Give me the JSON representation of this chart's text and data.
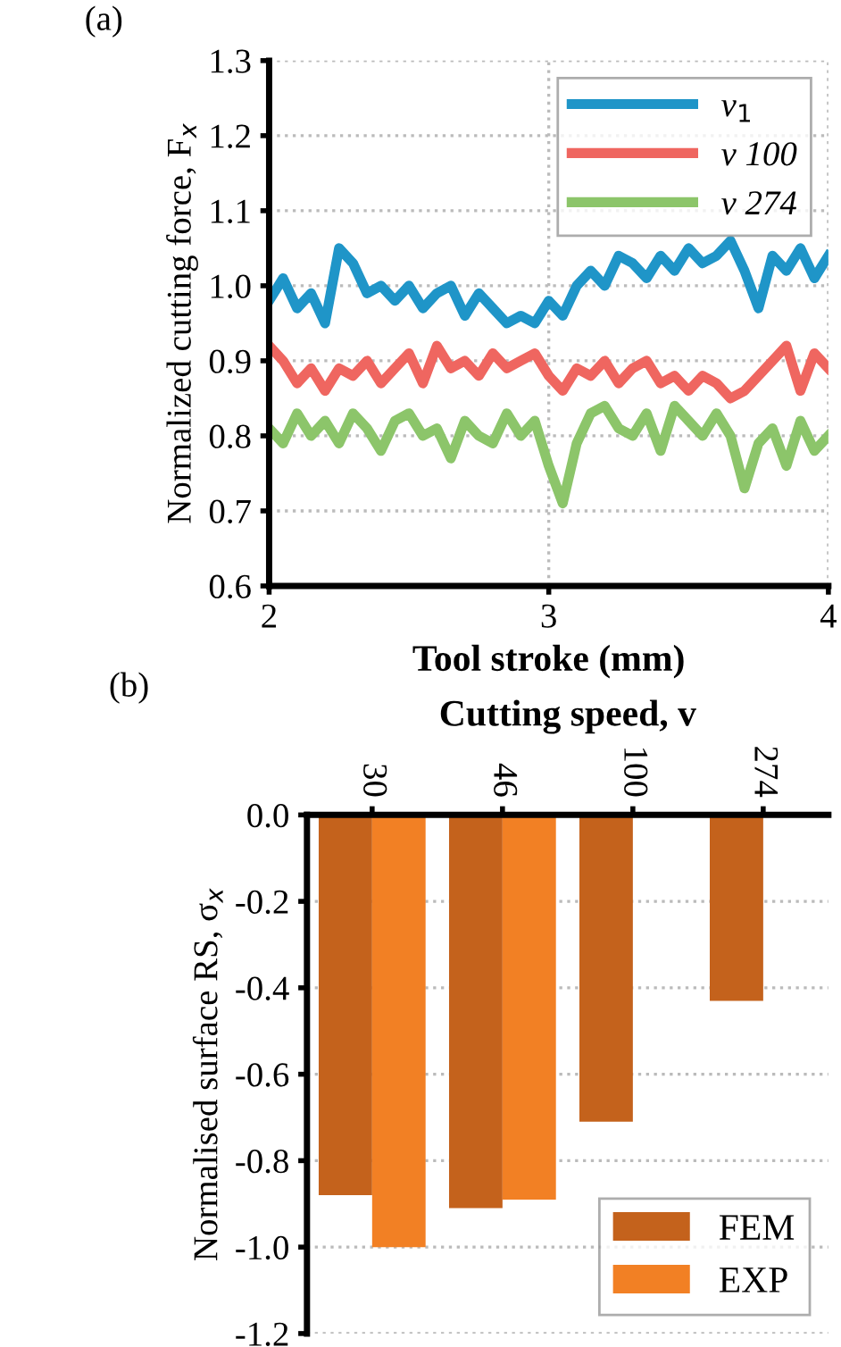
{
  "chart_data": [
    {
      "type": "line",
      "title": "(a)",
      "xlabel": "Tool stroke (mm)",
      "ylabel": "Normalized cutting force, F$_{x}$",
      "xlim": [
        2,
        4
      ],
      "ylim": [
        0.6,
        1.3
      ],
      "xticks": [
        2,
        3,
        4
      ],
      "yticks": [
        {
          "value": 0.6,
          "label": "0.6"
        },
        {
          "value": 0.7,
          "label": "0.7"
        },
        {
          "value": 0.8,
          "label": "0.8"
        },
        {
          "value": 0.9,
          "label": "0.9"
        },
        {
          "value": 1.0,
          "label": "1.0"
        },
        {
          "value": 1.1,
          "label": "1.1"
        },
        {
          "value": 1.2,
          "label": "1.2"
        },
        {
          "value": 1.3,
          "label": "1.3"
        }
      ],
      "grid": true,
      "legend": "top right",
      "line_style": "solid",
      "marker": "none",
      "x": [
        2.0,
        2.05,
        2.1,
        2.15,
        2.2,
        2.25,
        2.3,
        2.35,
        2.4,
        2.45,
        2.5,
        2.55,
        2.6,
        2.65,
        2.7,
        2.75,
        2.8,
        2.85,
        2.9,
        2.95,
        3.0,
        3.05,
        3.1,
        3.15,
        3.2,
        3.25,
        3.3,
        3.35,
        3.4,
        3.45,
        3.5,
        3.55,
        3.6,
        3.65,
        3.7,
        3.75,
        3.8,
        3.85,
        3.9,
        3.95,
        4.0
      ],
      "series": [
        {
          "name": "v$_{1}$",
          "color": "#1f95c8",
          "values": [
            0.98,
            1.01,
            0.97,
            0.99,
            0.95,
            1.05,
            1.03,
            0.99,
            1.0,
            0.98,
            1.0,
            0.97,
            0.99,
            1.0,
            0.96,
            0.99,
            0.97,
            0.95,
            0.96,
            0.95,
            0.98,
            0.96,
            1.0,
            1.02,
            1.0,
            1.04,
            1.03,
            1.01,
            1.04,
            1.02,
            1.05,
            1.03,
            1.04,
            1.06,
            1.02,
            0.97,
            1.04,
            1.02,
            1.05,
            1.01,
            1.04
          ]
        },
        {
          "name": "v 100",
          "color": "#ef6660",
          "values": [
            0.92,
            0.9,
            0.87,
            0.89,
            0.86,
            0.89,
            0.88,
            0.9,
            0.87,
            0.89,
            0.91,
            0.87,
            0.92,
            0.89,
            0.9,
            0.88,
            0.91,
            0.89,
            0.9,
            0.91,
            0.88,
            0.86,
            0.89,
            0.88,
            0.9,
            0.87,
            0.89,
            0.9,
            0.87,
            0.88,
            0.86,
            0.88,
            0.87,
            0.85,
            0.86,
            0.88,
            0.9,
            0.92,
            0.86,
            0.91,
            0.89
          ]
        },
        {
          "name": "v 274",
          "color": "#8cc56a",
          "values": [
            0.81,
            0.79,
            0.83,
            0.8,
            0.82,
            0.79,
            0.83,
            0.81,
            0.78,
            0.82,
            0.83,
            0.8,
            0.81,
            0.77,
            0.82,
            0.8,
            0.79,
            0.83,
            0.8,
            0.82,
            0.76,
            0.71,
            0.79,
            0.83,
            0.84,
            0.81,
            0.8,
            0.83,
            0.78,
            0.84,
            0.82,
            0.8,
            0.83,
            0.8,
            0.73,
            0.79,
            0.81,
            0.76,
            0.82,
            0.78,
            0.8
          ]
        }
      ]
    },
    {
      "type": "bar",
      "title": "(b)",
      "xlabel": "Cutting speed, v",
      "ylabel": "Normalised surface RS, σ$_{x}$",
      "categories": [
        "30",
        "46",
        "100",
        "274"
      ],
      "ylim": [
        -1.2,
        0
      ],
      "yticks": [
        {
          "value": -1.2,
          "label": "-1.2"
        },
        {
          "value": -1.0,
          "label": "-1.0"
        },
        {
          "value": -0.8,
          "label": "-0.8"
        },
        {
          "value": -0.6,
          "label": "-0.6"
        },
        {
          "value": -0.4,
          "label": "-0.4"
        },
        {
          "value": -0.2,
          "label": "-0.2"
        },
        {
          "value": 0,
          "label": "0.0"
        }
      ],
      "grid": "y",
      "legend": "bottom right",
      "series": [
        {
          "name": "FEM",
          "color": "#c4621c",
          "values": [
            -0.88,
            -0.91,
            -0.71,
            -0.43
          ]
        },
        {
          "name": "EXP",
          "color": "#f28024",
          "values": [
            -1.0,
            -0.89,
            null,
            null
          ]
        }
      ]
    }
  ]
}
